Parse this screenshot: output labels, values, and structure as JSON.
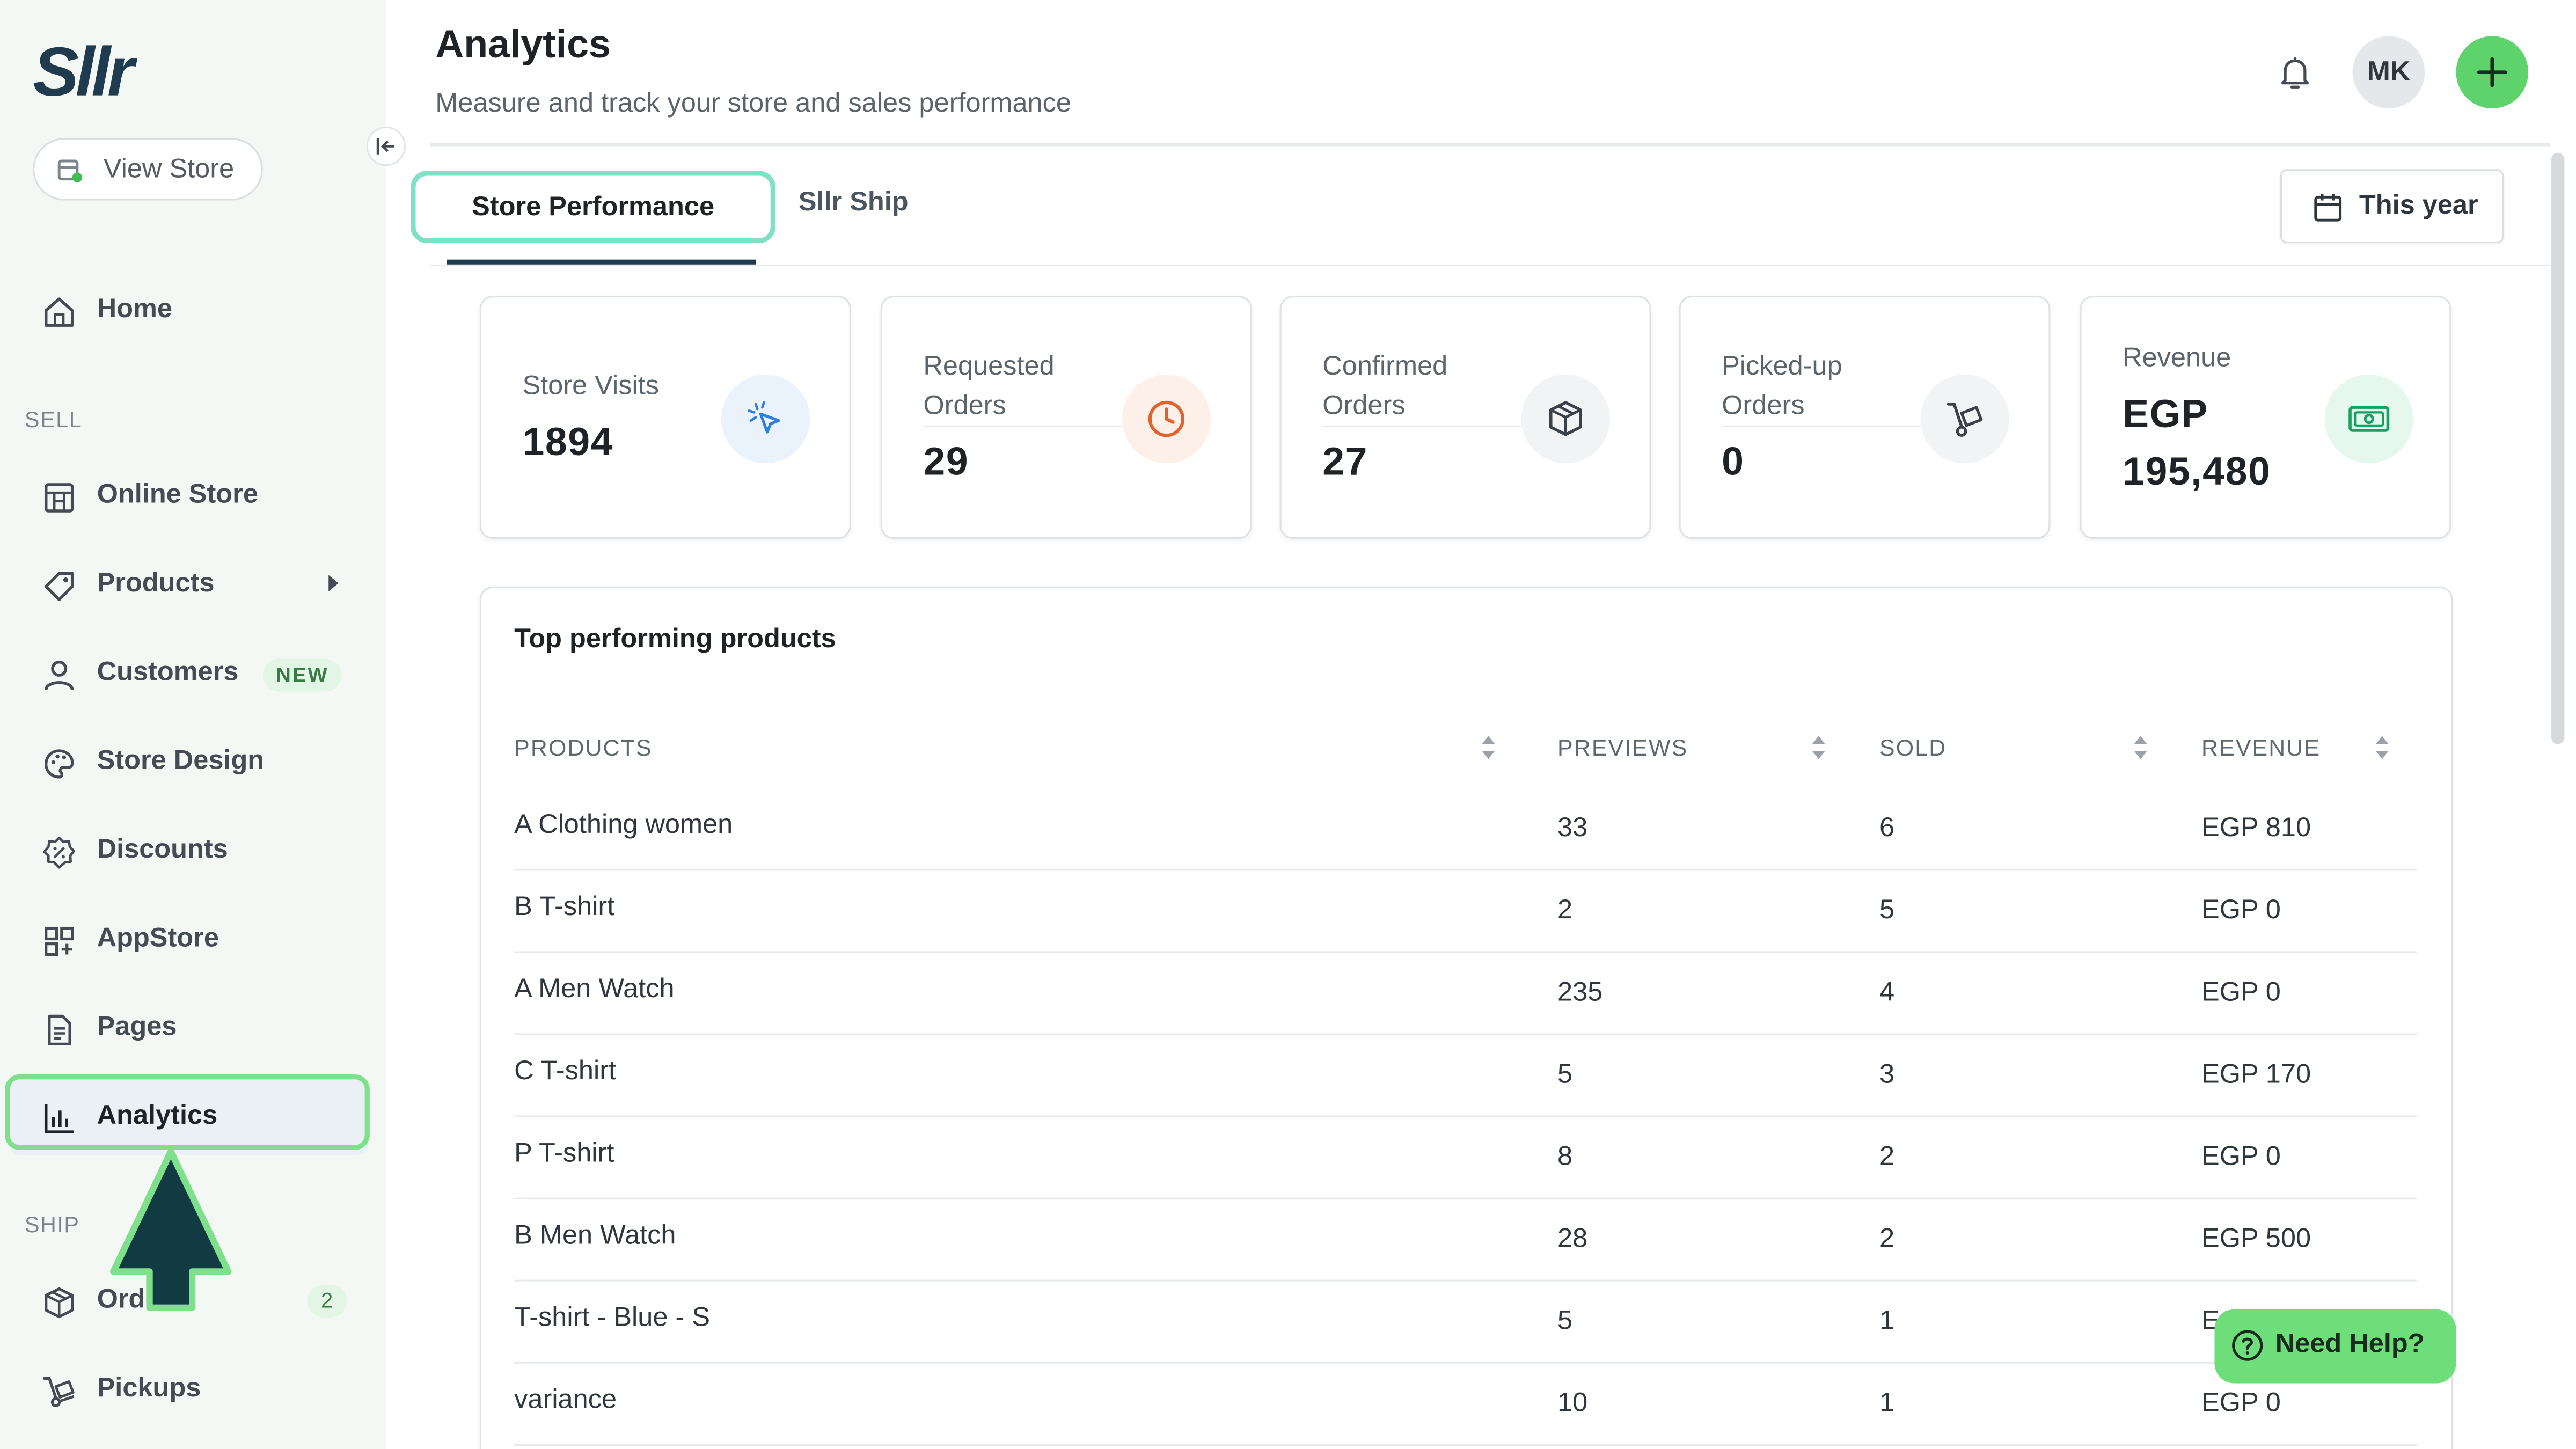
{
  "brand": {
    "logo_text": "Sllr",
    "accent": "#5fd36b"
  },
  "sidebar": {
    "view_store": "View Store",
    "home": "Home",
    "sections": {
      "sell": "SELL",
      "ship": "SHIP"
    },
    "items": {
      "online_store": "Online Store",
      "products": "Products",
      "customers": "Customers",
      "customers_badge": "NEW",
      "store_design": "Store Design",
      "discounts": "Discounts",
      "appstore": "AppStore",
      "pages": "Pages",
      "analytics": "Analytics",
      "orders": "Orders",
      "orders_count": "2",
      "pickups": "Pickups"
    }
  },
  "header": {
    "title": "Analytics",
    "subtitle": "Measure and track your store and sales performance",
    "avatar_initials": "MK"
  },
  "tabs": {
    "store_performance": "Store Performance",
    "sllr_ship": "Sllr Ship"
  },
  "date_filter": "This year",
  "stats": {
    "store_visits": {
      "label": "Store Visits",
      "value": "1894"
    },
    "requested_orders": {
      "label1": "Requested",
      "label2": "Orders",
      "value": "29"
    },
    "confirmed_orders": {
      "label1": "Confirmed",
      "label2": "Orders",
      "value": "27"
    },
    "pickedup_orders": {
      "label1": "Picked-up",
      "label2": "Orders",
      "value": "0"
    },
    "revenue": {
      "label": "Revenue",
      "currency": "EGP",
      "value": "195,480"
    }
  },
  "table": {
    "title": "Top performing products",
    "headers": {
      "products": "PRODUCTS",
      "previews": "PREVIEWS",
      "sold": "SOLD",
      "revenue": "REVENUE"
    },
    "rows": [
      {
        "product": "A Clothing women",
        "previews": "33",
        "sold": "6",
        "revenue": "EGP 810"
      },
      {
        "product": "B T-shirt",
        "previews": "2",
        "sold": "5",
        "revenue": "EGP 0"
      },
      {
        "product": "A Men Watch",
        "previews": "235",
        "sold": "4",
        "revenue": "EGP 0"
      },
      {
        "product": "C T-shirt",
        "previews": "5",
        "sold": "3",
        "revenue": "EGP 170"
      },
      {
        "product": "P T-shirt",
        "previews": "8",
        "sold": "2",
        "revenue": "EGP 0"
      },
      {
        "product": "B Men Watch",
        "previews": "28",
        "sold": "2",
        "revenue": "EGP 500"
      },
      {
        "product": "T-shirt - Blue - S",
        "previews": "5",
        "sold": "1",
        "revenue": "EG"
      },
      {
        "product": "variance",
        "previews": "10",
        "sold": "1",
        "revenue": "EGP 0"
      }
    ]
  },
  "help": {
    "label": "Need Help?"
  }
}
